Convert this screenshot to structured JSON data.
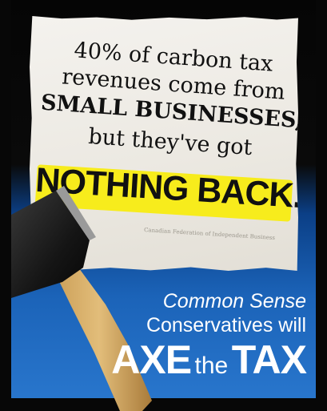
{
  "headline": {
    "line1": "40% of carbon tax",
    "line2": "revenues come from",
    "line3": "SMALL BUSINESSES,",
    "line4": "but they've got",
    "line5": "NOTHING BACK."
  },
  "attribution": "Canadian Federation of Independent Business",
  "slogan": {
    "line1": "Common Sense",
    "line2": "Conservatives will",
    "axe": "AXE",
    "the": "the",
    "tax": "TAX"
  },
  "colors": {
    "highlight": "#f7ec1c",
    "blue": "#1b63b8",
    "black": "#070707",
    "paper": "#f0ede7"
  }
}
